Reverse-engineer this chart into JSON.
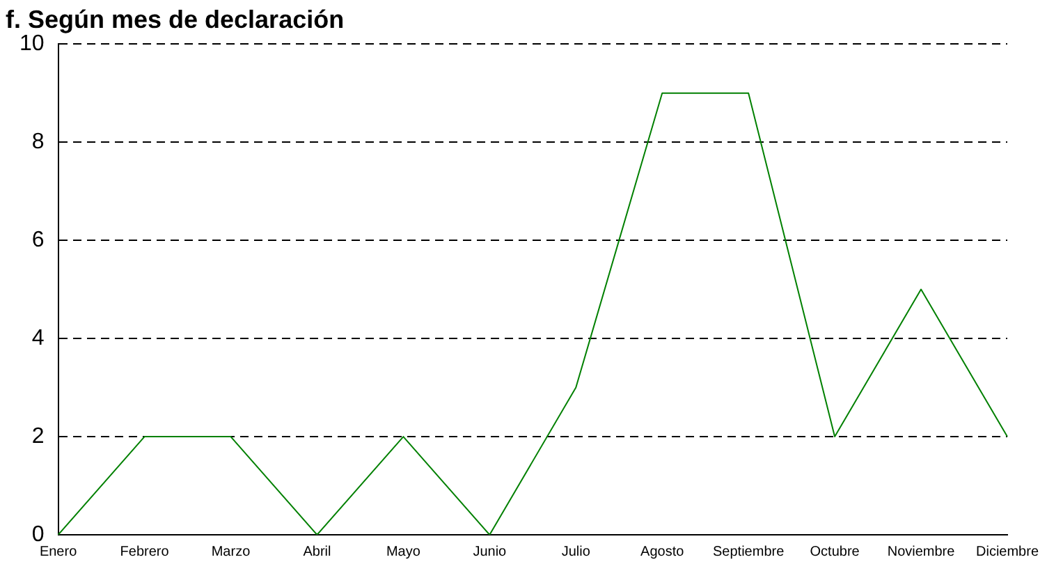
{
  "chart_data": {
    "type": "line",
    "title": "f. Según mes de declaración",
    "categories": [
      "Enero",
      "Febrero",
      "Marzo",
      "Abril",
      "Mayo",
      "Junio",
      "Julio",
      "Agosto",
      "Septiembre",
      "Octubre",
      "Noviembre",
      "Diciembre"
    ],
    "series": [
      {
        "color": "#008000",
        "values": [
          0,
          2,
          2,
          0,
          2,
          0,
          3,
          9,
          9,
          2,
          5,
          2
        ]
      }
    ],
    "ylim": [
      0,
      10
    ],
    "yticks": [
      0,
      2,
      4,
      6,
      8,
      10
    ],
    "grid": "y",
    "line_style": "solid",
    "marker": "none",
    "legend": false
  }
}
